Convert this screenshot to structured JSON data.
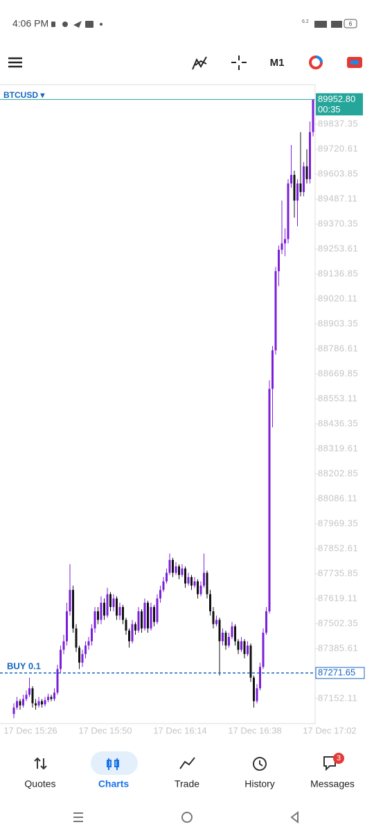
{
  "status_bar": {
    "time": "4:06 PM",
    "net_speed": "6.2",
    "battery": "6"
  },
  "toolbar": {
    "timeframe": "M1"
  },
  "chart_data": {
    "type": "candlestick",
    "symbol": "BTCUSD ▾",
    "up_color": "#7b1fd9",
    "down_color": "#111111",
    "ylim": [
      87035,
      90022
    ],
    "yticks": [
      89837.35,
      89720.61,
      89603.85,
      89487.11,
      89370.35,
      89253.61,
      89136.85,
      89020.11,
      88903.35,
      88786.61,
      88669.85,
      88553.11,
      88436.35,
      88319.61,
      88202.85,
      88086.11,
      87969.35,
      87852.61,
      87735.85,
      87619.11,
      87502.35,
      87385.61,
      87152.11
    ],
    "categories": [
      "17 Dec 15:26",
      "17 Dec 15:50",
      "17 Dec 16:14",
      "17 Dec 16:38",
      "17 Dec 17:02"
    ],
    "current_price": {
      "value": 89952.8,
      "label": "89952.80"
    },
    "timer": "00:35",
    "order": {
      "label": "BUY 0.1",
      "price": 87271.65
    },
    "ohlc": [
      [
        87080,
        87130,
        87060,
        87110
      ],
      [
        87110,
        87160,
        87100,
        87140
      ],
      [
        87140,
        87150,
        87100,
        87120
      ],
      [
        87120,
        87170,
        87110,
        87150
      ],
      [
        87150,
        87190,
        87140,
        87170
      ],
      [
        87170,
        87250,
        87160,
        87200
      ],
      [
        87200,
        87210,
        87110,
        87130
      ],
      [
        87130,
        87150,
        87100,
        87120
      ],
      [
        87120,
        87160,
        87110,
        87140
      ],
      [
        87140,
        87150,
        87110,
        87125
      ],
      [
        87125,
        87160,
        87115,
        87145
      ],
      [
        87145,
        87175,
        87135,
        87160
      ],
      [
        87160,
        87170,
        87140,
        87150
      ],
      [
        87150,
        87200,
        87140,
        87180
      ],
      [
        87180,
        87310,
        87170,
        87290
      ],
      [
        87290,
        87400,
        87270,
        87380
      ],
      [
        87380,
        87450,
        87360,
        87420
      ],
      [
        87420,
        87600,
        87400,
        87560
      ],
      [
        87560,
        87780,
        87540,
        87660
      ],
      [
        87660,
        87680,
        87460,
        87480
      ],
      [
        87480,
        87500,
        87370,
        87390
      ],
      [
        87390,
        87400,
        87290,
        87320
      ],
      [
        87320,
        87380,
        87300,
        87360
      ],
      [
        87360,
        87420,
        87340,
        87400
      ],
      [
        87400,
        87440,
        87380,
        87420
      ],
      [
        87420,
        87500,
        87400,
        87480
      ],
      [
        87480,
        87580,
        87460,
        87560
      ],
      [
        87560,
        87580,
        87500,
        87520
      ],
      [
        87520,
        87630,
        87500,
        87600
      ],
      [
        87600,
        87620,
        87520,
        87540
      ],
      [
        87540,
        87670,
        87530,
        87640
      ],
      [
        87640,
        87650,
        87560,
        87580
      ],
      [
        87580,
        87640,
        87560,
        87620
      ],
      [
        87620,
        87630,
        87520,
        87540
      ],
      [
        87540,
        87600,
        87520,
        87580
      ],
      [
        87580,
        87590,
        87500,
        87520
      ],
      [
        87520,
        87530,
        87450,
        87470
      ],
      [
        87470,
        87480,
        87390,
        87420
      ],
      [
        87420,
        87520,
        87410,
        87500
      ],
      [
        87500,
        87510,
        87450,
        87470
      ],
      [
        87470,
        87580,
        87460,
        87560
      ],
      [
        87560,
        87570,
        87460,
        87480
      ],
      [
        87480,
        87620,
        87470,
        87600
      ],
      [
        87600,
        87610,
        87460,
        87480
      ],
      [
        87480,
        87600,
        87470,
        87580
      ],
      [
        87580,
        87590,
        87490,
        87510
      ],
      [
        87510,
        87640,
        87500,
        87620
      ],
      [
        87620,
        87680,
        87600,
        87660
      ],
      [
        87660,
        87720,
        87650,
        87700
      ],
      [
        87700,
        87760,
        87690,
        87740
      ],
      [
        87740,
        87830,
        87730,
        87800
      ],
      [
        87800,
        87810,
        87720,
        87740
      ],
      [
        87740,
        87790,
        87730,
        87770
      ],
      [
        87770,
        87780,
        87710,
        87730
      ],
      [
        87730,
        87780,
        87720,
        87760
      ],
      [
        87760,
        87770,
        87670,
        87690
      ],
      [
        87690,
        87740,
        87680,
        87720
      ],
      [
        87720,
        87730,
        87660,
        87680
      ],
      [
        87680,
        87720,
        87670,
        87700
      ],
      [
        87700,
        87710,
        87620,
        87640
      ],
      [
        87640,
        87700,
        87630,
        87680
      ],
      [
        87680,
        87830,
        87670,
        87740
      ],
      [
        87740,
        87750,
        87620,
        87640
      ],
      [
        87640,
        87660,
        87540,
        87560
      ],
      [
        87560,
        87580,
        87480,
        87500
      ],
      [
        87500,
        87540,
        87490,
        87520
      ],
      [
        87520,
        87530,
        87260,
        87420
      ],
      [
        87420,
        87480,
        87400,
        87460
      ],
      [
        87460,
        87470,
        87380,
        87400
      ],
      [
        87400,
        87460,
        87390,
        87440
      ],
      [
        87440,
        87510,
        87430,
        87490
      ],
      [
        87490,
        87500,
        87400,
        87420
      ],
      [
        87420,
        87430,
        87360,
        87380
      ],
      [
        87380,
        87440,
        87370,
        87420
      ],
      [
        87420,
        87430,
        87340,
        87360
      ],
      [
        87360,
        87420,
        87350,
        87400
      ],
      [
        87400,
        87410,
        87230,
        87250
      ],
      [
        87250,
        87260,
        87110,
        87140
      ],
      [
        87140,
        87220,
        87130,
        87200
      ],
      [
        87200,
        87320,
        87190,
        87300
      ],
      [
        87300,
        87480,
        87290,
        87460
      ],
      [
        87460,
        87580,
        87450,
        87560
      ],
      [
        87560,
        88640,
        87550,
        88600
      ],
      [
        88600,
        88800,
        88420,
        88780
      ],
      [
        88780,
        89170,
        88760,
        89150
      ],
      [
        89150,
        89270,
        89080,
        89250
      ],
      [
        89250,
        89480,
        89230,
        89280
      ],
      [
        89280,
        89350,
        89220,
        89300
      ],
      [
        89300,
        89580,
        89280,
        89560
      ],
      [
        89560,
        89740,
        89540,
        89600
      ],
      [
        89600,
        89620,
        89400,
        89480
      ],
      [
        89480,
        89580,
        89360,
        89560
      ],
      [
        89560,
        89800,
        89500,
        89520
      ],
      [
        89520,
        89660,
        89500,
        89640
      ],
      [
        89640,
        89720,
        89560,
        89580
      ],
      [
        89580,
        89850,
        89560,
        89800
      ],
      [
        89800,
        89955,
        89780,
        89952.8
      ]
    ]
  },
  "nav": {
    "items": [
      "Quotes",
      "Charts",
      "Trade",
      "History",
      "Messages"
    ],
    "badge": "3"
  }
}
